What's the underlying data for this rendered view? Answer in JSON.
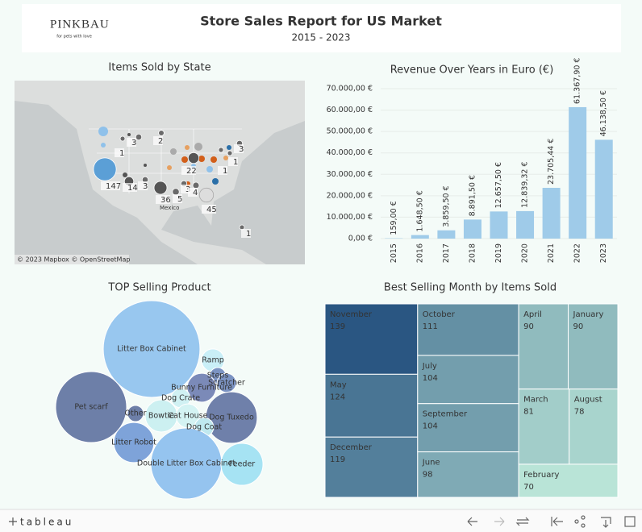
{
  "header": {
    "logo": "PINKBAU",
    "tagline": "for pets with love",
    "title": "Store Sales Report for US Market",
    "subtitle": "2015 - 2023"
  },
  "map": {
    "title": "Items Sold by State",
    "labels": [
      1,
      3,
      2,
      147,
      14,
      3,
      36,
      5,
      3,
      4,
      22,
      45,
      1,
      1,
      3,
      1
    ],
    "place": "Mexico",
    "attribution": "© 2023 Mapbox  © OpenStreetMap"
  },
  "chart_data": [
    {
      "type": "bar",
      "title": "Revenue Over Years in Euro (€)",
      "categories": [
        "2015",
        "2016",
        "2017",
        "2018",
        "2019",
        "2020",
        "2021",
        "2022",
        "2023"
      ],
      "values": [
        159,
        1648.5,
        3859.5,
        8891.5,
        12657.5,
        12839.32,
        23705.44,
        61367.9,
        46138.5
      ],
      "value_labels": [
        "159,00 €",
        "1.648,50 €",
        "3.859,50 €",
        "8.891,50 €",
        "12.657,50 €",
        "12.839,32 €",
        "23.705,44 €",
        "61.367,90 €",
        "46.138,50 €"
      ],
      "color": "#9fcbe9",
      "ylim": [
        0,
        70000
      ],
      "yticks": [
        {
          "value": 0,
          "label": "0,00 €"
        },
        {
          "value": 10000,
          "label": "10.000,00 €"
        },
        {
          "value": 20000,
          "label": "20.000,00 €"
        },
        {
          "value": 30000,
          "label": "30.000,00 €"
        },
        {
          "value": 40000,
          "label": "40.000,00 €"
        },
        {
          "value": 50000,
          "label": "50.000,00 €"
        },
        {
          "value": 60000,
          "label": "60.000,00 €"
        },
        {
          "value": 70000,
          "label": "70.000,00 €"
        }
      ],
      "grid": true
    },
    {
      "type": "bubble",
      "title": "TOP Selling Product",
      "categories": [
        "Litter Box Cabinet",
        "Ramp",
        "Steps",
        "Scratcher",
        "Bunny Furniture",
        "Dog Crate",
        "Pet scarf",
        "Other",
        "Bowtie",
        "Cat House",
        "Dog Tuxedo",
        "Dog Coat",
        "Litter Robot",
        "Double Litter Box Cabinet",
        "Feeder"
      ],
      "values": [
        360,
        20,
        10,
        14,
        32,
        14,
        194,
        10,
        40,
        22,
        102,
        14,
        62,
        194,
        68
      ],
      "colors": [
        "#98c7ef",
        "#c9eff7",
        "#7b93c2",
        "#7b93c2",
        "#7b8ab8",
        "#d0f1f3",
        "#6d7fa8",
        "#6d7fa8",
        "#ccf0f1",
        "#d4f3f3",
        "#6f80aa",
        "#bfe8ef",
        "#7ea3d9",
        "#95c4ef",
        "#a6e3f3"
      ]
    },
    {
      "type": "treemap",
      "title": "Best Selling Month by Items Sold",
      "categories": [
        "November",
        "May",
        "December",
        "October",
        "July",
        "September",
        "June",
        "April",
        "January",
        "March",
        "August",
        "February"
      ],
      "values": [
        139,
        124,
        119,
        111,
        104,
        104,
        98,
        90,
        90,
        81,
        78,
        70
      ],
      "color_range": [
        "#b9e4d7",
        "#2a5682"
      ]
    }
  ],
  "toolbar": {
    "brand": "tableau"
  }
}
